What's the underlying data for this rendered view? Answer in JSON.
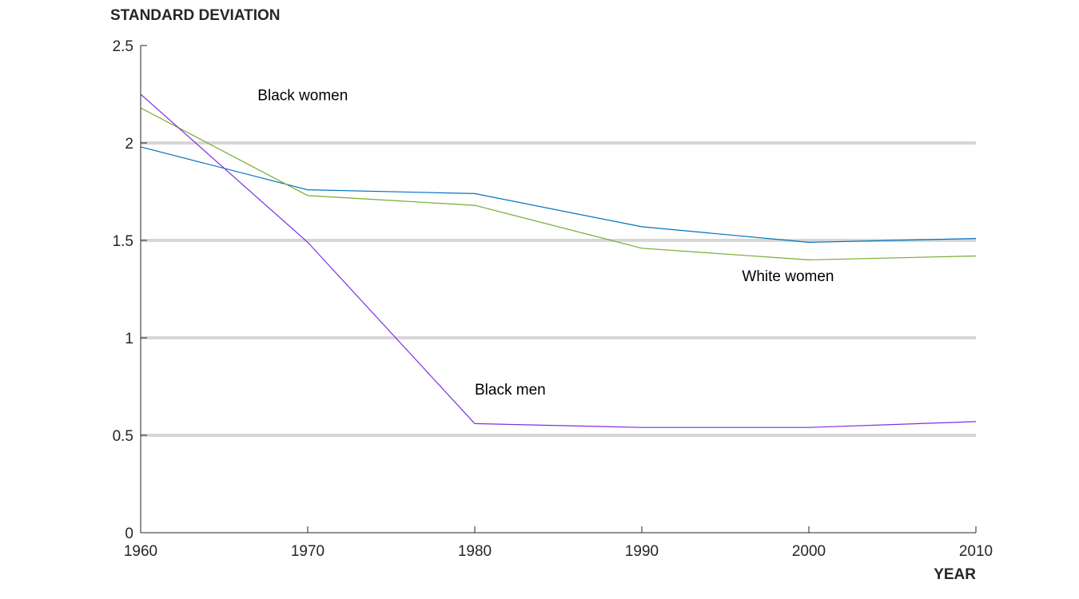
{
  "chart_data": {
    "type": "line",
    "ylabel": "STANDARD DEVIATION",
    "xlabel": "YEAR",
    "x": [
      1960,
      1970,
      1980,
      1990,
      2000,
      2010
    ],
    "xlim": [
      1960,
      2010
    ],
    "ylim": [
      0,
      2.5
    ],
    "x_ticks": [
      1960,
      1970,
      1980,
      1990,
      2000,
      2010
    ],
    "y_ticks": [
      0,
      0.5,
      1,
      1.5,
      2,
      2.5
    ],
    "y_tick_labels": [
      "0",
      "0.5",
      "1",
      "1.5",
      "2",
      "2.5"
    ],
    "x_tick_labels": [
      "1960",
      "1970",
      "1980",
      "1990",
      "2000",
      "2010"
    ],
    "gridlines": [
      0.5,
      1,
      1.5,
      2
    ],
    "series": [
      {
        "key": "blue",
        "color": "#0072bd",
        "values": [
          1.98,
          1.76,
          1.74,
          1.57,
          1.49,
          1.51
        ]
      },
      {
        "key": "green",
        "color": "#77ac30",
        "values": [
          2.18,
          1.73,
          1.68,
          1.46,
          1.4,
          1.42
        ]
      },
      {
        "key": "purple",
        "color": "#7e2fdf",
        "values": [
          2.25,
          1.49,
          0.56,
          0.54,
          0.54,
          0.57
        ]
      }
    ],
    "annotations": [
      {
        "text": "Black women",
        "x": 1967.0,
        "y": 2.22
      },
      {
        "text": "White women",
        "x": 1996.0,
        "y": 1.29
      },
      {
        "text": "Black men",
        "x": 1980.0,
        "y": 0.71
      }
    ]
  }
}
